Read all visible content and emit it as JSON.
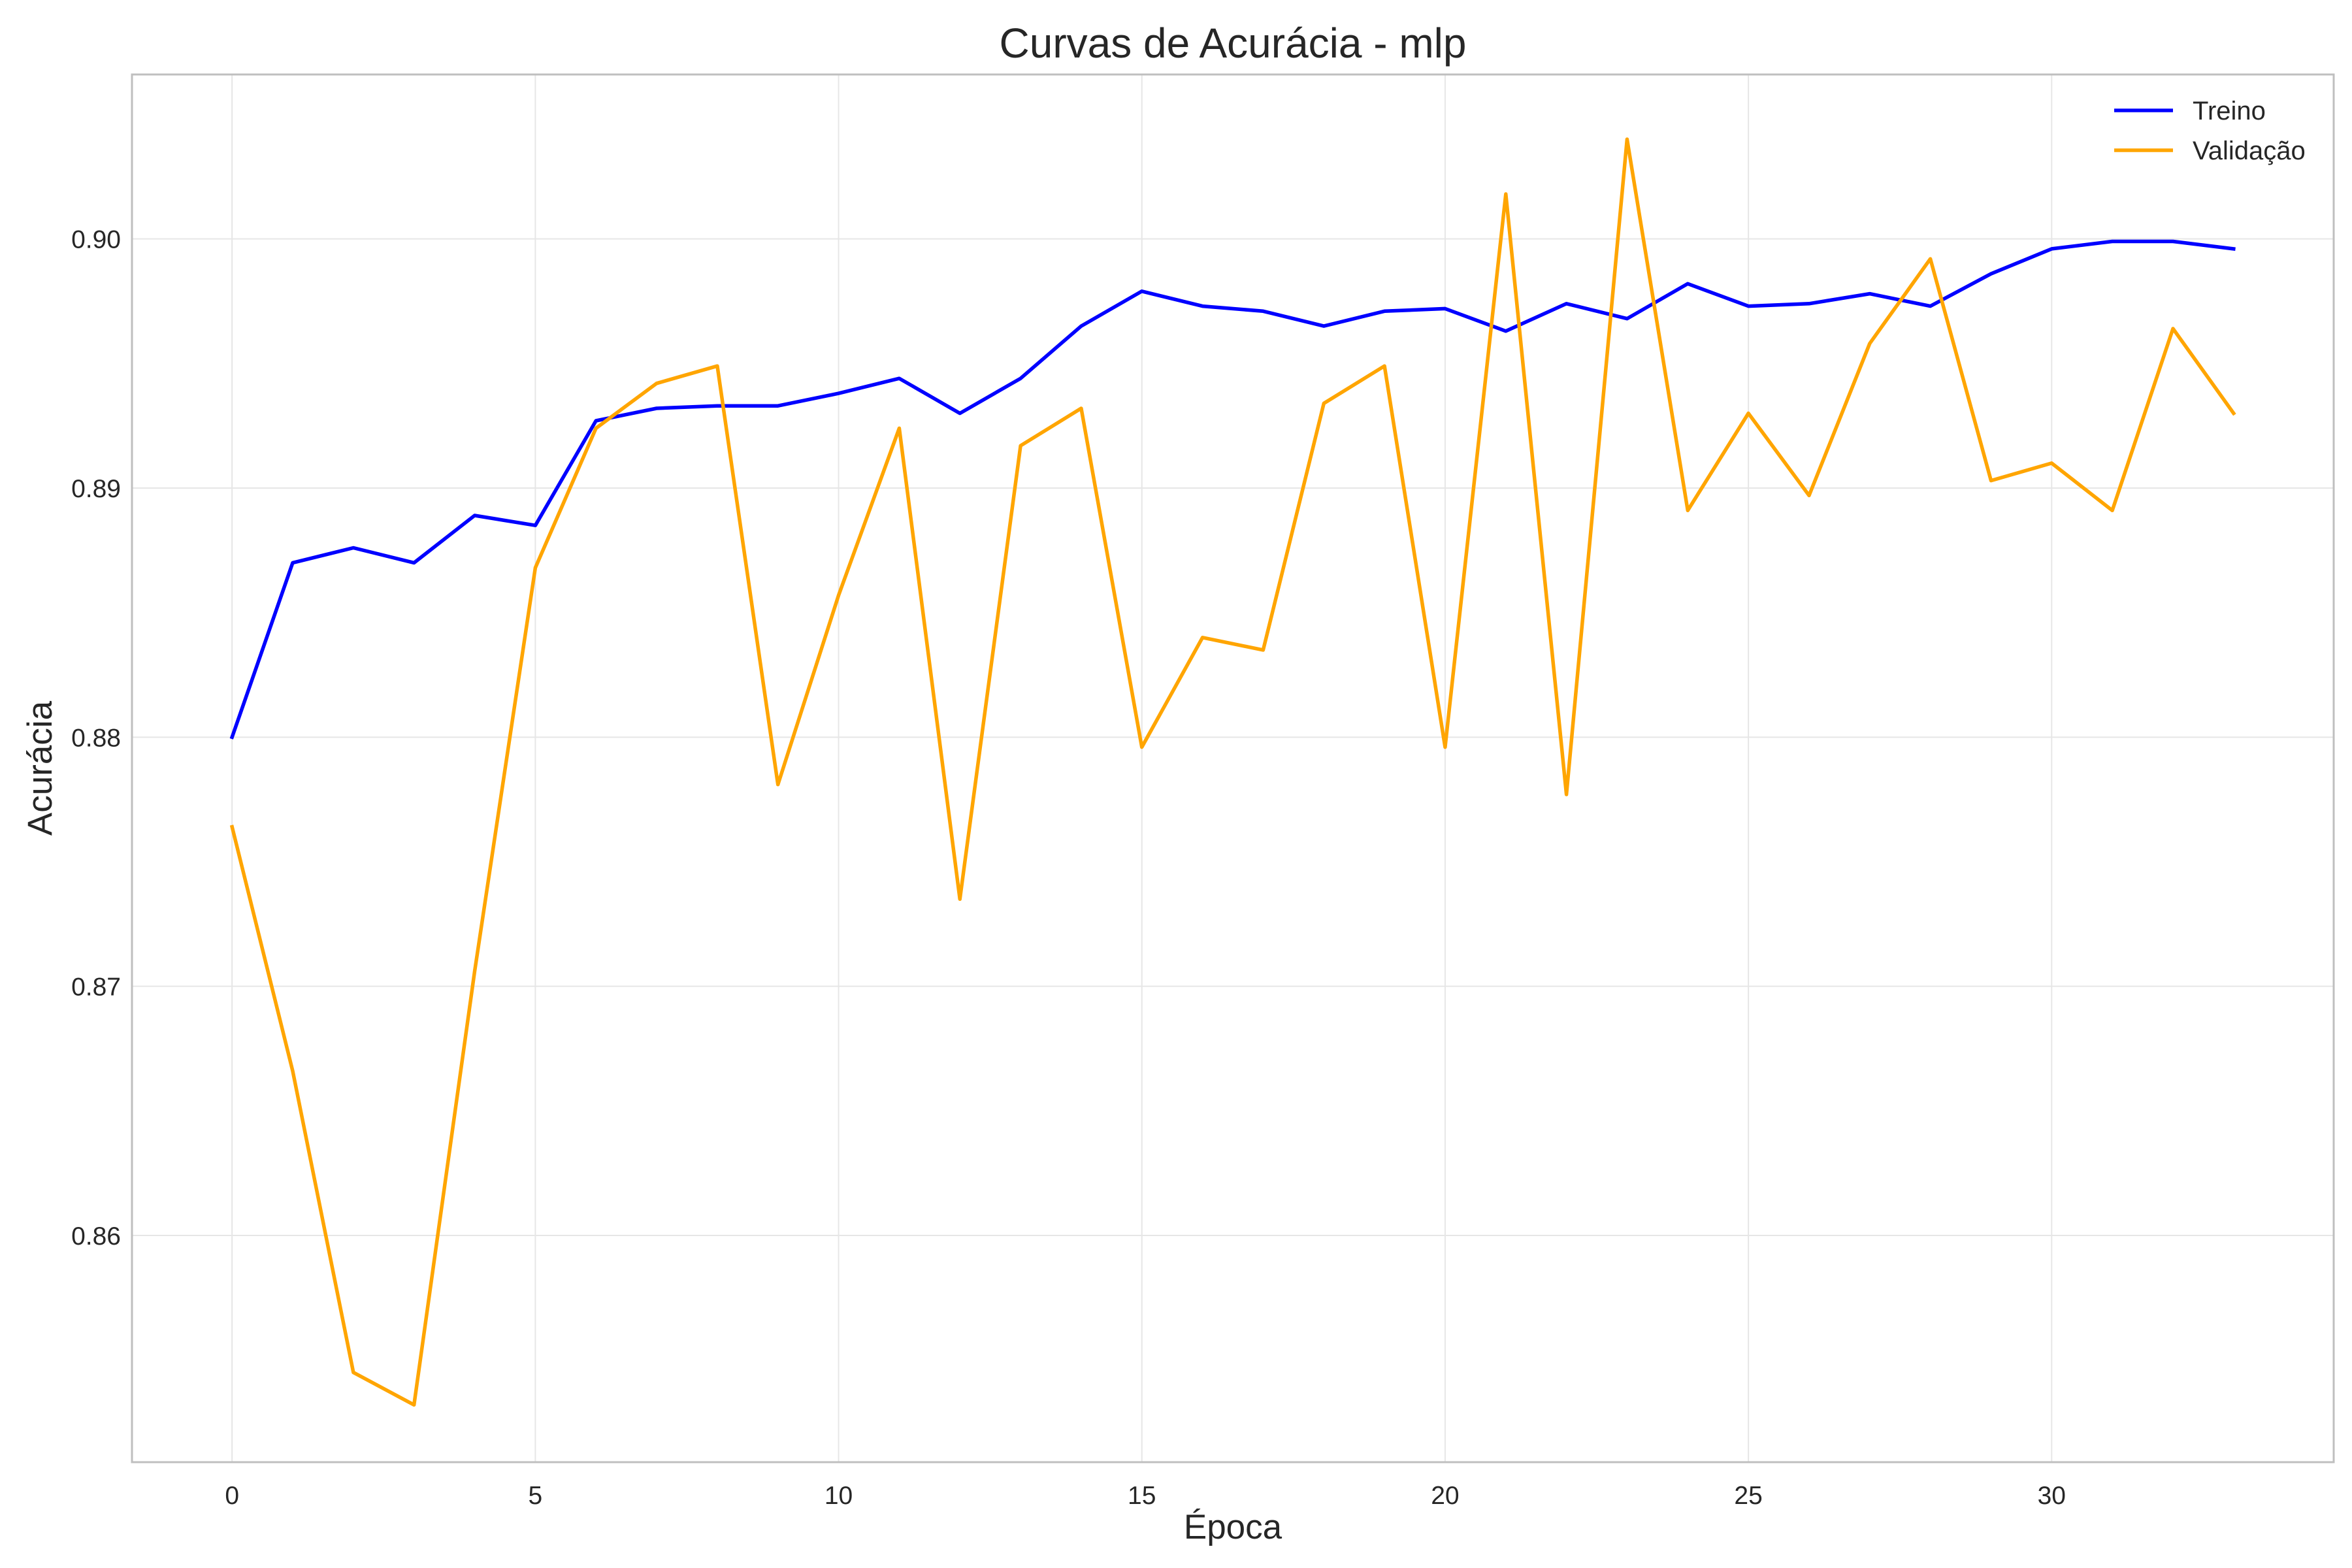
{
  "chart_data": {
    "type": "line",
    "title": "Curvas de Acurácia - mlp",
    "xlabel": "Época",
    "ylabel": "Acurácia",
    "x": [
      0,
      1,
      2,
      3,
      4,
      5,
      6,
      7,
      8,
      9,
      10,
      11,
      12,
      13,
      14,
      15,
      16,
      17,
      18,
      19,
      20,
      21,
      22,
      23,
      24,
      25,
      26,
      27,
      28,
      29,
      30,
      31,
      32,
      33
    ],
    "xlim": [
      -1.65,
      34.65
    ],
    "ylim": [
      0.8509,
      0.9066
    ],
    "xticks": [
      0,
      5,
      10,
      15,
      20,
      25,
      30
    ],
    "xtick_labels": [
      "0",
      "5",
      "10",
      "15",
      "20",
      "25",
      "30"
    ],
    "yticks": [
      0.86,
      0.87,
      0.88,
      0.89,
      0.9
    ],
    "ytick_labels": [
      "0.86",
      "0.87",
      "0.88",
      "0.89",
      "0.90"
    ],
    "grid": true,
    "legend_position": "top-right",
    "series": [
      {
        "name": "Treino",
        "color": "#0000ff",
        "values": [
          0.88,
          0.887,
          0.8876,
          0.887,
          0.8889,
          0.8885,
          0.8927,
          0.8932,
          0.8933,
          0.8933,
          0.8938,
          0.8944,
          0.893,
          0.8944,
          0.8965,
          0.8979,
          0.8973,
          0.8971,
          0.8965,
          0.8971,
          0.8972,
          0.8963,
          0.8974,
          0.8968,
          0.8982,
          0.8973,
          0.8974,
          0.8978,
          0.8973,
          0.8986,
          0.8996,
          0.8999,
          0.8999,
          0.8996
        ]
      },
      {
        "name": "Validação",
        "color": "#ffa500",
        "values": [
          0.8764,
          0.8666,
          0.8545,
          0.8532,
          0.8706,
          0.8868,
          0.8924,
          0.8942,
          0.8949,
          0.8781,
          0.8857,
          0.8924,
          0.8735,
          0.8917,
          0.8932,
          0.8796,
          0.884,
          0.8835,
          0.8934,
          0.8949,
          0.8796,
          0.9018,
          0.8777,
          0.904,
          0.8891,
          0.893,
          0.8897,
          0.8958,
          0.8992,
          0.8903,
          0.891,
          0.8891,
          0.8964,
          0.893
        ]
      }
    ]
  }
}
